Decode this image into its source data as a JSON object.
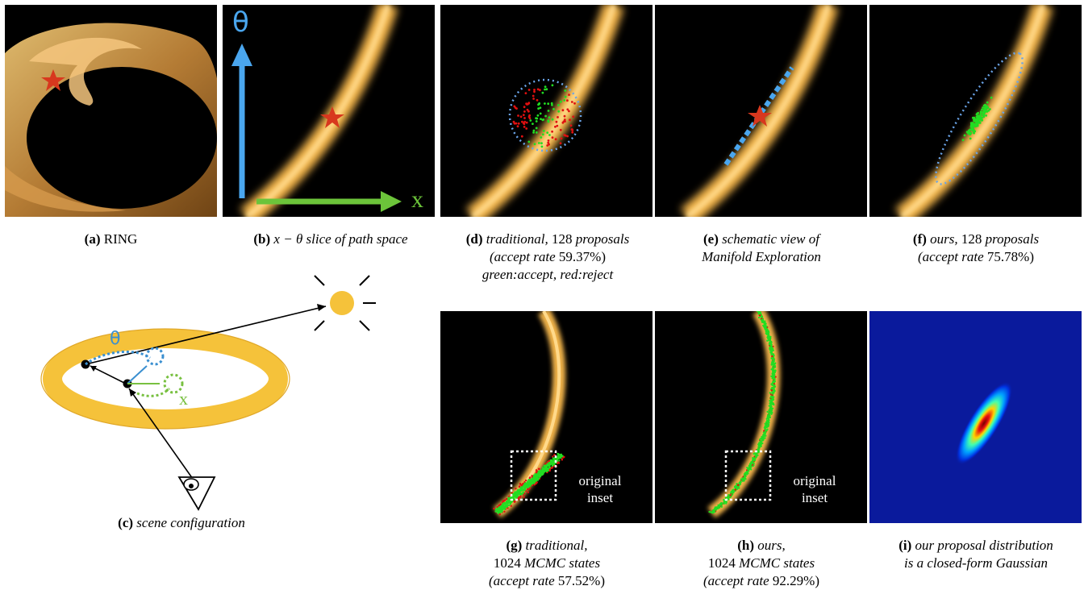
{
  "panels": {
    "a": {
      "tag": "(a)",
      "text": "RING"
    },
    "b": {
      "tag": "(b)",
      "math": "x − θ",
      "text": "slice of path space",
      "axis_theta": "θ",
      "axis_x": "x"
    },
    "c": {
      "tag": "(c)",
      "text": "scene configuration",
      "theta": "θ",
      "x": "x"
    },
    "d": {
      "tag": "(d)",
      "line1_a": "traditional,",
      "line1_num": "128",
      "line1_b": "proposals",
      "line2_a": "(accept rate",
      "line2_num": "59.37%)",
      "line3": "green:accept, red:reject"
    },
    "e": {
      "tag": "(e)",
      "line1": "schematic view of",
      "line2": "Manifold Exploration"
    },
    "f": {
      "tag": "(f)",
      "line1_a": "ours,",
      "line1_num": "128",
      "line1_b": "proposals",
      "line2_a": "(accept rate",
      "line2_num": "75.78%)"
    },
    "g": {
      "tag": "(g)",
      "line1": "traditional,",
      "line2_num": "1024",
      "line2_b": "MCMC states",
      "line3_a": "(accept rate",
      "line3_num": "57.52%)",
      "inset_1": "original",
      "inset_2": "inset"
    },
    "h": {
      "tag": "(h)",
      "line1": "ours,",
      "line2_num": "1024",
      "line2_b": "MCMC states",
      "line3_a": "(accept rate",
      "line3_num": "92.29%)",
      "inset_1": "original",
      "inset_2": "inset"
    },
    "i": {
      "tag": "(i)",
      "line1": "our proposal distribution",
      "line2": "is a closed-form Gaussian"
    }
  },
  "colors": {
    "ring_gold": "#f5c23a",
    "band_glow": "#f0b24a",
    "accept": "#22dd22",
    "reject": "#e01010",
    "star": "#d8381e",
    "theta_axis": "#4aa6ee",
    "x_axis": "#6cc43a",
    "jet_bg": "#0a1a9c"
  }
}
